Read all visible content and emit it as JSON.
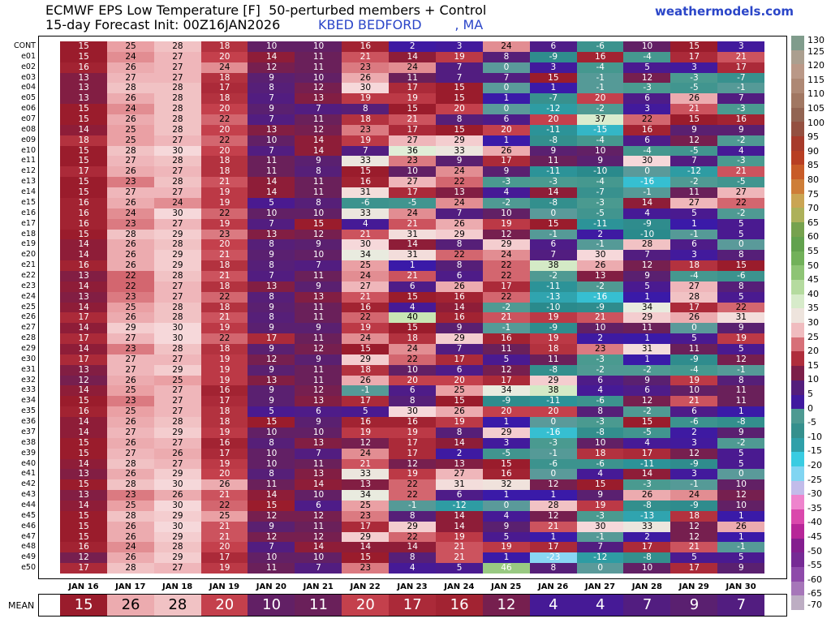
{
  "header": {
    "title": "ECMWF EPS Low Temperature [F]  50-perturbed members + Control",
    "init": "15-day Forecast Init: 00Z16JAN2026",
    "station": "KBED BEDFORD        , MA",
    "brand": "weathermodels.com"
  },
  "mean_label": "MEAN",
  "chart_data": {
    "type": "heatmap",
    "title": "ECMWF EPS Low Temperature [F]  50-perturbed members + Control",
    "columns": [
      "JAN 16",
      "JAN 17",
      "JAN 18",
      "JAN 19",
      "JAN 20",
      "JAN 21",
      "JAN 22",
      "JAN 23",
      "JAN 24",
      "JAN 25",
      "JAN 26",
      "JAN 27",
      "JAN 28",
      "JAN 29",
      "JAN 30"
    ],
    "members": [
      "CONT",
      "e01",
      "e02",
      "e03",
      "e04",
      "e05",
      "e06",
      "e07",
      "e08",
      "e09",
      "e10",
      "e11",
      "e12",
      "e13",
      "e14",
      "e15",
      "e16",
      "e17",
      "e18",
      "e19",
      "e20",
      "e21",
      "e22",
      "e23",
      "e24",
      "e25",
      "e26",
      "e27",
      "e28",
      "e29",
      "e30",
      "e31",
      "e32",
      "e33",
      "e34",
      "e35",
      "e36",
      "e37",
      "e38",
      "e39",
      "e40",
      "e41",
      "e42",
      "e43",
      "e44",
      "e45",
      "e46",
      "e47",
      "e48",
      "e49",
      "e50"
    ],
    "values": [
      [
        15,
        25,
        28,
        18,
        10,
        10,
        16,
        2,
        3,
        24,
        6,
        -6,
        10,
        15,
        3
      ],
      [
        15,
        24,
        27,
        20,
        14,
        11,
        21,
        14,
        19,
        8,
        -9,
        16,
        -4,
        17,
        21
      ],
      [
        16,
        26,
        27,
        24,
        12,
        11,
        23,
        24,
        7,
        0,
        3,
        -4,
        5,
        3,
        17
      ],
      [
        13,
        27,
        27,
        18,
        9,
        10,
        26,
        11,
        7,
        7,
        15,
        -1,
        12,
        -3,
        -7
      ],
      [
        13,
        28,
        28,
        17,
        8,
        12,
        30,
        17,
        15,
        0,
        1,
        -1,
        -3,
        -5,
        -1
      ],
      [
        13,
        26,
        28,
        18,
        7,
        13,
        19,
        19,
        15,
        1,
        -7,
        20,
        6,
        26,
        7
      ],
      [
        15,
        24,
        28,
        20,
        9,
        7,
        8,
        15,
        20,
        0,
        -12,
        -2,
        3,
        21,
        -3
      ],
      [
        15,
        26,
        28,
        22,
        7,
        11,
        18,
        21,
        8,
        6,
        20,
        37,
        22,
        15,
        16
      ],
      [
        14,
        25,
        28,
        20,
        13,
        12,
        23,
        17,
        15,
        20,
        -11,
        -15,
        16,
        9,
        9
      ],
      [
        18,
        25,
        27,
        22,
        10,
        14,
        19,
        27,
        29,
        1,
        -8,
        -4,
        6,
        12,
        -2
      ],
      [
        15,
        28,
        30,
        20,
        7,
        14,
        7,
        36,
        33,
        26,
        9,
        10,
        -4,
        -5,
        4
      ],
      [
        15,
        27,
        28,
        18,
        11,
        9,
        33,
        23,
        9,
        17,
        11,
        9,
        30,
        7,
        -3
      ],
      [
        17,
        26,
        27,
        18,
        11,
        8,
        15,
        10,
        24,
        9,
        -11,
        -10,
        0,
        -12,
        21
      ],
      [
        15,
        23,
        28,
        21,
        14,
        11,
        16,
        27,
        22,
        -3,
        -3,
        -4,
        -16,
        -2,
        -5
      ],
      [
        15,
        27,
        27,
        19,
        14,
        11,
        31,
        17,
        13,
        4,
        14,
        -7,
        -1,
        11,
        27
      ],
      [
        16,
        26,
        24,
        19,
        5,
        8,
        -6,
        -5,
        24,
        -2,
        -8,
        -3,
        14,
        27,
        22
      ],
      [
        16,
        24,
        30,
        22,
        10,
        10,
        33,
        24,
        7,
        10,
        0,
        -5,
        4,
        5,
        -2
      ],
      [
        16,
        23,
        27,
        19,
        7,
        15,
        4,
        21,
        26,
        19,
        15,
        -11,
        -9,
        1,
        5
      ],
      [
        15,
        28,
        29,
        23,
        13,
        12,
        21,
        31,
        29,
        12,
        -1,
        2,
        -10,
        -1,
        5
      ],
      [
        14,
        26,
        28,
        20,
        8,
        9,
        30,
        14,
        8,
        29,
        6,
        -1,
        28,
        6,
        0
      ],
      [
        14,
        26,
        29,
        21,
        9,
        10,
        34,
        31,
        22,
        24,
        7,
        30,
        7,
        3,
        8
      ],
      [
        16,
        26,
        29,
        18,
        8,
        7,
        25,
        1,
        8,
        22,
        38,
        26,
        12,
        18,
        15
      ],
      [
        13,
        22,
        28,
        21,
        7,
        11,
        24,
        21,
        6,
        22,
        -2,
        13,
        9,
        -4,
        -6
      ],
      [
        14,
        22,
        27,
        18,
        13,
        9,
        27,
        6,
        26,
        17,
        -11,
        -2,
        5,
        27,
        8
      ],
      [
        13,
        23,
        27,
        22,
        8,
        13,
        21,
        15,
        16,
        22,
        -13,
        -16,
        1,
        28,
        5
      ],
      [
        14,
        25,
        28,
        18,
        9,
        11,
        16,
        4,
        14,
        -2,
        -10,
        -9,
        34,
        17,
        22
      ],
      [
        17,
        26,
        28,
        21,
        8,
        11,
        22,
        40,
        16,
        21,
        19,
        21,
        29,
        26,
        31
      ],
      [
        14,
        29,
        30,
        19,
        9,
        9,
        19,
        15,
        9,
        -1,
        -9,
        10,
        11,
        0,
        9
      ],
      [
        17,
        27,
        30,
        22,
        17,
        11,
        24,
        18,
        29,
        16,
        19,
        2,
        1,
        5,
        19
      ],
      [
        14,
        23,
        28,
        18,
        9,
        12,
        15,
        24,
        7,
        11,
        18,
        23,
        31,
        11,
        5
      ],
      [
        17,
        27,
        27,
        19,
        12,
        9,
        29,
        22,
        17,
        5,
        11,
        -3,
        1,
        -9,
        12
      ],
      [
        13,
        27,
        29,
        19,
        9,
        11,
        18,
        10,
        6,
        12,
        -8,
        -2,
        -2,
        -4,
        -1
      ],
      [
        12,
        26,
        25,
        19,
        13,
        11,
        26,
        20,
        20,
        17,
        29,
        6,
        9,
        19,
        8
      ],
      [
        14,
        25,
        27,
        16,
        9,
        12,
        -1,
        6,
        25,
        34,
        38,
        4,
        6,
        10,
        11
      ],
      [
        15,
        23,
        27,
        17,
        9,
        13,
        17,
        8,
        15,
        -9,
        -11,
        -6,
        12,
        21,
        11
      ],
      [
        16,
        25,
        27,
        18,
        5,
        6,
        5,
        30,
        26,
        20,
        20,
        8,
        -2,
        6,
        1
      ],
      [
        14,
        26,
        28,
        18,
        15,
        9,
        16,
        16,
        19,
        1,
        0,
        -3,
        15,
        -6,
        -8
      ],
      [
        14,
        27,
        29,
        19,
        10,
        10,
        19,
        19,
        8,
        29,
        -16,
        -8,
        -5,
        2,
        9
      ],
      [
        15,
        26,
        27,
        16,
        8,
        13,
        12,
        17,
        14,
        3,
        -3,
        10,
        4,
        3,
        -2
      ],
      [
        15,
        27,
        26,
        17,
        10,
        7,
        24,
        17,
        2,
        -5,
        -1,
        18,
        17,
        12,
        5
      ],
      [
        14,
        28,
        27,
        19,
        10,
        11,
        21,
        12,
        13,
        15,
        -6,
        -6,
        -11,
        -9,
        5
      ],
      [
        13,
        26,
        29,
        20,
        8,
        13,
        33,
        19,
        27,
        16,
        0,
        4,
        14,
        3,
        0
      ],
      [
        15,
        28,
        30,
        26,
        11,
        14,
        13,
        22,
        31,
        32,
        12,
        15,
        -3,
        -1,
        10
      ],
      [
        13,
        23,
        26,
        21,
        14,
        10,
        34,
        22,
        6,
        1,
        1,
        9,
        26,
        24,
        12
      ],
      [
        14,
        25,
        30,
        22,
        15,
        6,
        25,
        -1,
        -12,
        0,
        28,
        19,
        -8,
        -9,
        10
      ],
      [
        15,
        28,
        29,
        25,
        12,
        12,
        23,
        8,
        14,
        4,
        12,
        -3,
        -13,
        18,
        1
      ],
      [
        15,
        26,
        30,
        21,
        9,
        11,
        17,
        29,
        14,
        9,
        21,
        30,
        33,
        12,
        26
      ],
      [
        15,
        26,
        29,
        21,
        12,
        12,
        29,
        22,
        19,
        5,
        1,
        -1,
        2,
        12,
        1
      ],
      [
        16,
        24,
        28,
        20,
        7,
        14,
        14,
        14,
        21,
        19,
        17,
        7,
        17,
        21,
        -1
      ],
      [
        12,
        26,
        29,
        17,
        10,
        10,
        15,
        8,
        21,
        1,
        -23,
        -12,
        -8,
        5,
        5
      ],
      [
        17,
        28,
        27,
        19,
        11,
        7,
        23,
        4,
        5,
        46,
        8,
        0,
        10,
        17,
        9
      ]
    ],
    "mean": [
      15,
      26,
      28,
      20,
      10,
      11,
      20,
      17,
      16,
      12,
      4,
      4,
      7,
      9,
      7
    ],
    "colorbar": {
      "min": -70,
      "max": 130,
      "step": 5,
      "labels": [
        130,
        125,
        120,
        115,
        110,
        105,
        100,
        95,
        90,
        85,
        80,
        75,
        70,
        65,
        60,
        55,
        50,
        45,
        40,
        35,
        30,
        25,
        20,
        15,
        10,
        5,
        0,
        -5,
        -10,
        -15,
        -20,
        -25,
        -30,
        -35,
        -40,
        -45,
        -50,
        -55,
        -60,
        -65,
        -70
      ]
    },
    "palette": {
      "stops": [
        [
          -70,
          "#c8c8c8"
        ],
        [
          -60,
          "#9a5ab4"
        ],
        [
          -50,
          "#6a1a8a"
        ],
        [
          -40,
          "#d02a9c"
        ],
        [
          -32,
          "#f08ad0"
        ],
        [
          -25,
          "#a8d8f8"
        ],
        [
          -18,
          "#3ad0e8"
        ],
        [
          -10,
          "#2a8a8c"
        ],
        [
          -3,
          "#4a9a90"
        ],
        [
          0,
          "#5a9a9a"
        ],
        [
          1,
          "#3a1aa8"
        ],
        [
          5,
          "#4a1a90"
        ],
        [
          9,
          "#5a2070"
        ],
        [
          11,
          "#6a205a"
        ],
        [
          15,
          "#9a1c2c"
        ],
        [
          20,
          "#c4404c"
        ],
        [
          25,
          "#eaa0a4"
        ],
        [
          30,
          "#f6d8da"
        ],
        [
          35,
          "#e6f0e0"
        ],
        [
          40,
          "#c8e6b4"
        ],
        [
          50,
          "#7ab860"
        ],
        [
          60,
          "#5a9a48"
        ],
        [
          70,
          "#c8b860"
        ],
        [
          80,
          "#d06a2a"
        ],
        [
          90,
          "#b03020"
        ],
        [
          100,
          "#8a5a4a"
        ],
        [
          110,
          "#a8806a"
        ],
        [
          120,
          "#c0a090"
        ],
        [
          130,
          "#6a9a8a"
        ]
      ]
    }
  }
}
